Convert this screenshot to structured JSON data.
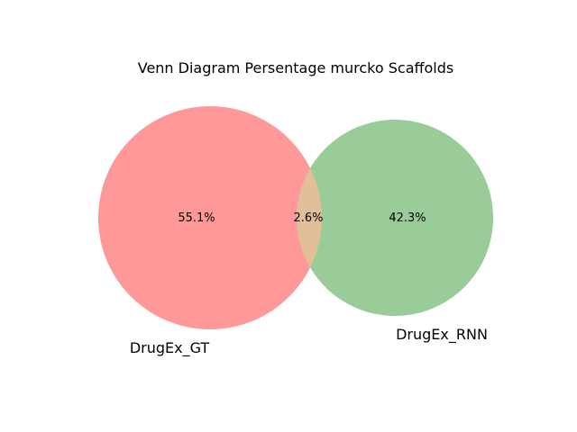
{
  "title": "Venn Diagram Persentage murcko Scaffolds",
  "colors": {
    "left_circle": "#ff9999",
    "right_circle": "#99cc99",
    "overlap": "#e0bf99"
  },
  "sets": {
    "left": {
      "label": "DrugEx_GT",
      "only_percent": "55.1%"
    },
    "right": {
      "label": "DrugEx_RNN",
      "only_percent": "42.3%"
    },
    "overlap": {
      "percent": "2.6%"
    }
  }
}
